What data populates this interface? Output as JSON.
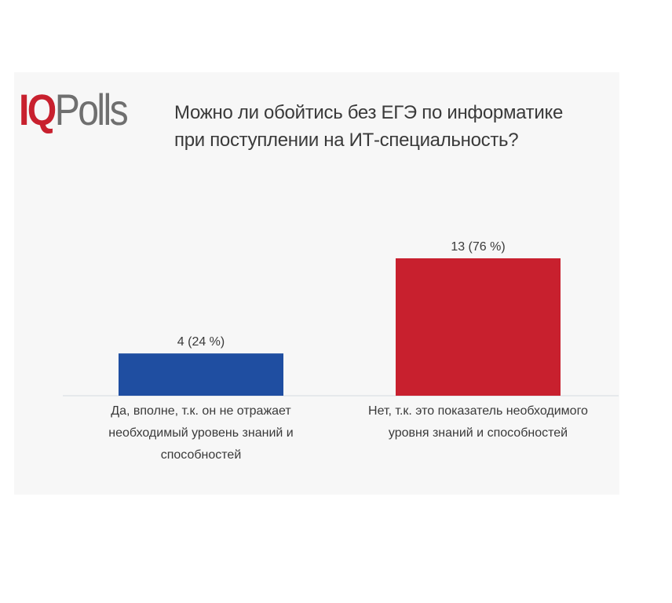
{
  "logo": {
    "iq": "IQ",
    "polls": "Polls"
  },
  "chart_data": {
    "type": "bar",
    "title": "Можно ли обойтись без ЕГЭ по информатике при поступлении на ИТ-специальность?",
    "categories": [
      [
        "Да, вполне, т.к. он не отражает",
        "необходимый уровень знаний и",
        "способностей"
      ],
      [
        "Нет, т.к. это показатель необходимого",
        "уровня знаний и способностей"
      ]
    ],
    "values": [
      4,
      13
    ],
    "percents": [
      "24 %",
      "76 %"
    ],
    "data_labels": [
      "4 (24 %)",
      "13 (76 %)"
    ],
    "colors": [
      "#1f4ea1",
      "#c8202e"
    ],
    "ylim": [
      0,
      13
    ],
    "grid": false,
    "legend": "none"
  }
}
